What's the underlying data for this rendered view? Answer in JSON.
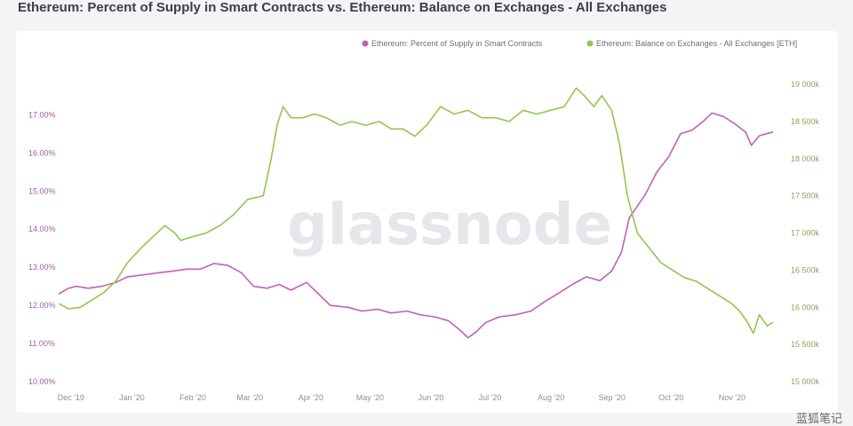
{
  "title": "Ethereum: Percent of Supply in Smart Contracts vs. Ethereum: Balance on Exchanges - All Exchanges",
  "watermark": "glassnode",
  "corner_watermark": "蓝狐笔记",
  "colors": {
    "purple": "#c35fb8",
    "green": "#92c74d",
    "background": "#ffffff"
  },
  "chart_data": {
    "type": "line",
    "title": "Ethereum: Percent of Supply in Smart Contracts vs. Ethereum: Balance on Exchanges - All Exchanges",
    "x_ticks": [
      "Dec '19",
      "Jan '20",
      "Feb '20",
      "Mar '20",
      "Apr '20",
      "May '20",
      "Jun '20",
      "Jul '20",
      "Aug '20",
      "Sep '20",
      "Oct '20",
      "Nov '20"
    ],
    "x_range": [
      "2019-11-23",
      "2020-11-20"
    ],
    "legend_position": "top-right",
    "y_left": {
      "ticks": [
        "10.00%",
        "11.00%",
        "12.00%",
        "13.00%",
        "14.00%",
        "15.00%",
        "16.00%",
        "17.00%"
      ],
      "range": [
        10,
        17.8
      ]
    },
    "y_right": {
      "ticks": [
        "15 000k",
        "15 500k",
        "16 000k",
        "16 500k",
        "17 000k",
        "17 500k",
        "18 000k",
        "18 500k",
        "19 000k"
      ],
      "range": [
        15000,
        19000
      ]
    },
    "series": [
      {
        "name": "Ethereum: Percent of Supply in Smart Contracts",
        "axis": "left",
        "color": "#c35fb8",
        "points": [
          [
            "2019-11-23",
            12.3
          ],
          [
            "2019-11-28",
            12.45
          ],
          [
            "2019-12-02",
            12.5
          ],
          [
            "2019-12-08",
            12.45
          ],
          [
            "2019-12-15",
            12.5
          ],
          [
            "2019-12-22",
            12.6
          ],
          [
            "2019-12-28",
            12.75
          ],
          [
            "2020-01-05",
            12.8
          ],
          [
            "2020-01-12",
            12.85
          ],
          [
            "2020-01-20",
            12.9
          ],
          [
            "2020-01-27",
            12.95
          ],
          [
            "2020-02-03",
            12.95
          ],
          [
            "2020-02-10",
            13.1
          ],
          [
            "2020-02-17",
            13.05
          ],
          [
            "2020-02-24",
            12.85
          ],
          [
            "2020-03-01",
            12.5
          ],
          [
            "2020-03-08",
            12.45
          ],
          [
            "2020-03-14",
            12.55
          ],
          [
            "2020-03-20",
            12.4
          ],
          [
            "2020-03-28",
            12.6
          ],
          [
            "2020-04-03",
            12.3
          ],
          [
            "2020-04-09",
            12.0
          ],
          [
            "2020-04-18",
            11.95
          ],
          [
            "2020-04-25",
            11.85
          ],
          [
            "2020-05-03",
            11.9
          ],
          [
            "2020-05-10",
            11.8
          ],
          [
            "2020-05-18",
            11.85
          ],
          [
            "2020-05-25",
            11.75
          ],
          [
            "2020-06-01",
            11.7
          ],
          [
            "2020-06-08",
            11.6
          ],
          [
            "2020-06-14",
            11.35
          ],
          [
            "2020-06-18",
            11.15
          ],
          [
            "2020-06-22",
            11.3
          ],
          [
            "2020-06-27",
            11.55
          ],
          [
            "2020-07-04",
            11.7
          ],
          [
            "2020-07-12",
            11.75
          ],
          [
            "2020-07-20",
            11.85
          ],
          [
            "2020-07-27",
            12.1
          ],
          [
            "2020-08-04",
            12.35
          ],
          [
            "2020-08-10",
            12.55
          ],
          [
            "2020-08-17",
            12.75
          ],
          [
            "2020-08-24",
            12.65
          ],
          [
            "2020-08-30",
            12.9
          ],
          [
            "2020-09-04",
            13.4
          ],
          [
            "2020-09-08",
            14.3
          ],
          [
            "2020-09-12",
            14.6
          ],
          [
            "2020-09-16",
            14.9
          ],
          [
            "2020-09-22",
            15.5
          ],
          [
            "2020-09-28",
            15.9
          ],
          [
            "2020-10-04",
            16.5
          ],
          [
            "2020-10-10",
            16.6
          ],
          [
            "2020-10-16",
            16.85
          ],
          [
            "2020-10-20",
            17.05
          ],
          [
            "2020-10-26",
            16.95
          ],
          [
            "2020-11-01",
            16.75
          ],
          [
            "2020-11-06",
            16.55
          ],
          [
            "2020-11-09",
            16.2
          ],
          [
            "2020-11-13",
            16.45
          ],
          [
            "2020-11-20",
            16.55
          ]
        ]
      },
      {
        "name": "Ethereum: Balance on Exchanges - All Exchanges [ETH]",
        "axis": "right",
        "color": "#92c74d",
        "points": [
          [
            "2019-11-23",
            16050
          ],
          [
            "2019-11-28",
            15980
          ],
          [
            "2019-12-04",
            16000
          ],
          [
            "2019-12-10",
            16100
          ],
          [
            "2019-12-16",
            16200
          ],
          [
            "2019-12-22",
            16350
          ],
          [
            "2019-12-28",
            16600
          ],
          [
            "2020-01-04",
            16800
          ],
          [
            "2020-01-10",
            16950
          ],
          [
            "2020-01-16",
            17100
          ],
          [
            "2020-01-21",
            17000
          ],
          [
            "2020-01-24",
            16900
          ],
          [
            "2020-01-30",
            16950
          ],
          [
            "2020-02-06",
            17000
          ],
          [
            "2020-02-13",
            17100
          ],
          [
            "2020-02-20",
            17250
          ],
          [
            "2020-02-27",
            17450
          ],
          [
            "2020-03-06",
            17500
          ],
          [
            "2020-03-10",
            18000
          ],
          [
            "2020-03-13",
            18450
          ],
          [
            "2020-03-16",
            18700
          ],
          [
            "2020-03-20",
            18550
          ],
          [
            "2020-03-26",
            18550
          ],
          [
            "2020-04-01",
            18600
          ],
          [
            "2020-04-07",
            18550
          ],
          [
            "2020-04-14",
            18450
          ],
          [
            "2020-04-20",
            18500
          ],
          [
            "2020-04-27",
            18450
          ],
          [
            "2020-05-04",
            18500
          ],
          [
            "2020-05-10",
            18400
          ],
          [
            "2020-05-16",
            18400
          ],
          [
            "2020-05-22",
            18300
          ],
          [
            "2020-05-28",
            18450
          ],
          [
            "2020-06-04",
            18700
          ],
          [
            "2020-06-11",
            18600
          ],
          [
            "2020-06-18",
            18650
          ],
          [
            "2020-06-25",
            18550
          ],
          [
            "2020-07-02",
            18550
          ],
          [
            "2020-07-09",
            18500
          ],
          [
            "2020-07-16",
            18650
          ],
          [
            "2020-07-23",
            18600
          ],
          [
            "2020-07-30",
            18650
          ],
          [
            "2020-08-06",
            18700
          ],
          [
            "2020-08-12",
            18950
          ],
          [
            "2020-08-16",
            18850
          ],
          [
            "2020-08-21",
            18700
          ],
          [
            "2020-08-25",
            18850
          ],
          [
            "2020-08-30",
            18650
          ],
          [
            "2020-09-03",
            18200
          ],
          [
            "2020-09-07",
            17500
          ],
          [
            "2020-09-12",
            17000
          ],
          [
            "2020-09-18",
            16800
          ],
          [
            "2020-09-24",
            16600
          ],
          [
            "2020-09-30",
            16500
          ],
          [
            "2020-10-06",
            16400
          ],
          [
            "2020-10-12",
            16350
          ],
          [
            "2020-10-18",
            16250
          ],
          [
            "2020-10-24",
            16150
          ],
          [
            "2020-10-30",
            16050
          ],
          [
            "2020-11-03",
            15950
          ],
          [
            "2020-11-07",
            15800
          ],
          [
            "2020-11-10",
            15650
          ],
          [
            "2020-11-13",
            15900
          ],
          [
            "2020-11-17",
            15750
          ],
          [
            "2020-11-20",
            15800
          ]
        ]
      }
    ]
  }
}
